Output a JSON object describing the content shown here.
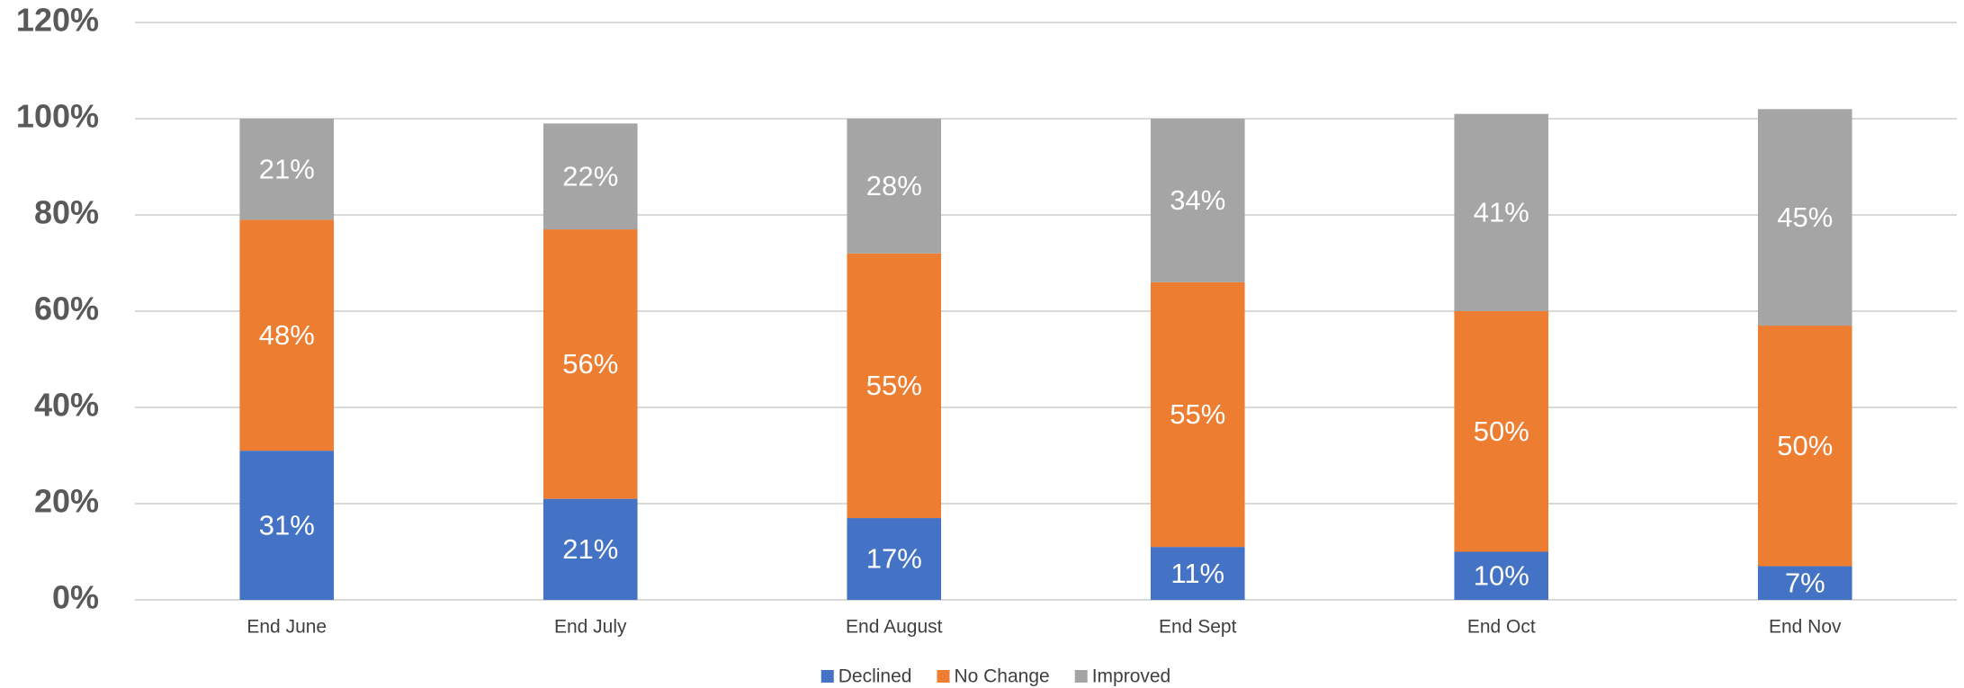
{
  "chart_data": {
    "type": "stacked_bar",
    "categories": [
      "End June",
      "End July",
      "End August",
      "End Sept",
      "End Oct",
      "End Nov"
    ],
    "series": [
      {
        "name": "Declined",
        "color": "#4472c4",
        "values": [
          31,
          21,
          17,
          11,
          10,
          7
        ],
        "value_labels": [
          "31%",
          "21%",
          "17%",
          "11%",
          "10%",
          "7%"
        ]
      },
      {
        "name": "No Change",
        "color": "#ed7d31",
        "values": [
          48,
          56,
          55,
          55,
          50,
          50
        ],
        "value_labels": [
          "48%",
          "56%",
          "55%",
          "55%",
          "50%",
          "50%"
        ]
      },
      {
        "name": "Improved",
        "color": "#a5a5a5",
        "values": [
          21,
          22,
          28,
          34,
          41,
          45
        ],
        "value_labels": [
          "21%",
          "22%",
          "28%",
          "34%",
          "41%",
          "45%"
        ]
      }
    ],
    "ylim": [
      0,
      120
    ],
    "yticks": [
      {
        "value": 0,
        "label": "0%"
      },
      {
        "value": 20,
        "label": "20%"
      },
      {
        "value": 40,
        "label": "40%"
      },
      {
        "value": 60,
        "label": "60%"
      },
      {
        "value": 80,
        "label": "80%"
      },
      {
        "value": 100,
        "label": "100%"
      },
      {
        "value": 120,
        "label": "120%"
      }
    ],
    "grid": true,
    "legend": "bottom"
  }
}
